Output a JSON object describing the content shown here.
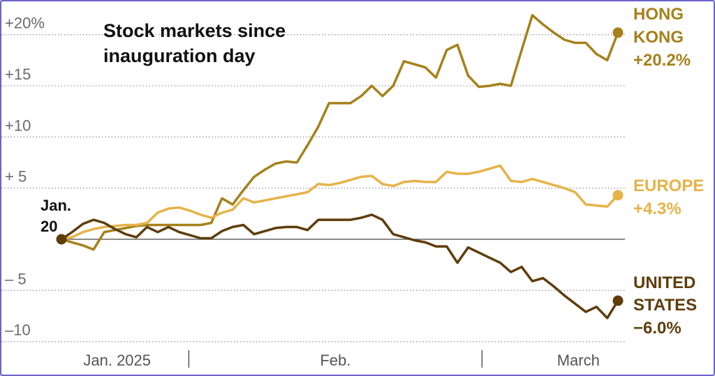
{
  "chart_data": {
    "type": "line",
    "title": "Stock markets since inauguration day",
    "annotation": "Jan. 20",
    "xlim": [
      0,
      52
    ],
    "xticks": [
      {
        "value": 5.2,
        "label": "Jan. 2025"
      },
      {
        "value": 25.6,
        "label": "Feb."
      },
      {
        "value": 48.3,
        "label": "March"
      }
    ],
    "xdividers": [
      11.9,
      39.3
    ],
    "ylim": [
      -10.5,
      22.5
    ],
    "yticks": [
      {
        "value": 20,
        "label": "+20%"
      },
      {
        "value": 15,
        "label": "+15"
      },
      {
        "value": 10,
        "label": "+10"
      },
      {
        "value": 5,
        "label": "+ 5"
      },
      {
        "value": -5,
        "label": "– 5"
      },
      {
        "value": -10,
        "label": "–10"
      }
    ],
    "grid": true,
    "series": [
      {
        "name": "HONG KONG",
        "color": "#a6811b",
        "end_label": "+20.2%",
        "values": [
          0,
          -0.3,
          -0.6,
          -1.0,
          0.7,
          0.9,
          1.1,
          1.3,
          1.4,
          1.4,
          1.4,
          1.4,
          1.4,
          1.4,
          1.6,
          4.0,
          3.4,
          4.8,
          6.1,
          6.8,
          7.4,
          7.6,
          7.5,
          9.2,
          11.0,
          13.3,
          13.3,
          13.3,
          14.0,
          15.0,
          14.0,
          15.0,
          17.4,
          17.1,
          16.8,
          15.8,
          18.5,
          19.0,
          16.0,
          14.9,
          15.0,
          15.2,
          15.0,
          18.5,
          21.9,
          21.0,
          20.2,
          19.5,
          19.2,
          19.2,
          18.1,
          17.5,
          20.2
        ]
      },
      {
        "name": "EUROPE",
        "color": "#e6b347",
        "end_label": "+4.3%",
        "values": [
          0,
          0.2,
          0.7,
          1.0,
          1.2,
          1.3,
          1.4,
          1.4,
          1.6,
          2.6,
          3.0,
          3.1,
          2.8,
          2.4,
          2.1,
          2.6,
          2.9,
          4.0,
          3.6,
          3.8,
          4.0,
          4.2,
          4.4,
          4.6,
          5.4,
          5.3,
          5.5,
          5.8,
          6.1,
          6.2,
          5.4,
          5.2,
          5.6,
          5.7,
          5.6,
          5.6,
          6.6,
          6.4,
          6.4,
          6.6,
          6.9,
          7.2,
          5.7,
          5.6,
          5.9,
          5.6,
          5.3,
          5.0,
          4.6,
          3.4,
          3.3,
          3.2,
          4.3
        ]
      },
      {
        "name": "UNITED STATES",
        "color": "#5e3d0b",
        "end_label": "−6.0%",
        "values": [
          0,
          0.7,
          1.5,
          1.9,
          1.6,
          1.0,
          0.5,
          0.2,
          1.2,
          0.7,
          1.2,
          0.7,
          0.4,
          0.1,
          0.1,
          0.8,
          1.2,
          1.4,
          0.5,
          0.8,
          1.1,
          1.2,
          1.2,
          0.9,
          1.9,
          1.9,
          1.9,
          1.9,
          2.1,
          2.4,
          1.9,
          0.5,
          0.2,
          -0.1,
          -0.3,
          -0.7,
          -0.7,
          -2.3,
          -0.8,
          -1.3,
          -1.8,
          -2.3,
          -3.2,
          -2.7,
          -4.1,
          -3.8,
          -4.6,
          -5.5,
          -6.3,
          -7.1,
          -6.6,
          -7.7,
          -6.0
        ]
      }
    ]
  }
}
